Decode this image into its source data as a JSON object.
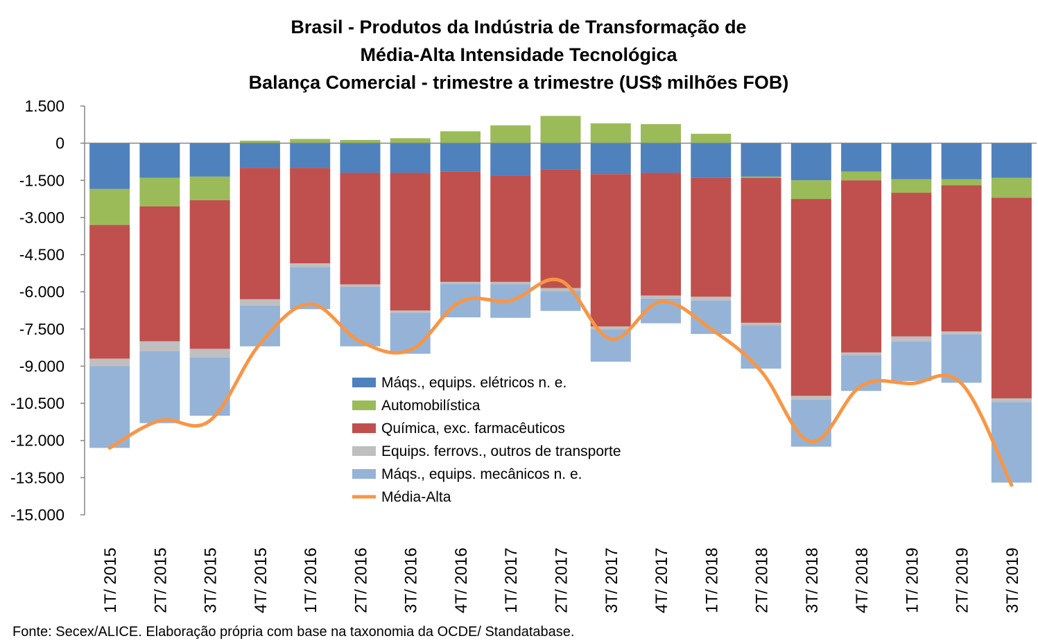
{
  "chart_data": {
    "type": "bar",
    "stacked": true,
    "title": [
      "Brasil - Produtos da Indústria de Transformação de",
      "Média-Alta Intensidade Tecnológica",
      "Balança Comercial - trimestre a trimestre (US$ milhões FOB)"
    ],
    "xlabel": "",
    "ylabel": "",
    "ylim": [
      -15000,
      1500
    ],
    "ytick_step": 1500,
    "yticks": [
      "1.500",
      "0",
      "-1.500",
      "-3.000",
      "-4.500",
      "-6.000",
      "-7.500",
      "-9.000",
      "-10.500",
      "-12.000",
      "-13.500",
      "-15.000"
    ],
    "grid": false,
    "legend_position": "inside-bottom-center",
    "categories": [
      "1T/ 2015",
      "2T/ 2015",
      "3T/ 2015",
      "4T/ 2015",
      "1T/ 2016",
      "2T/ 2016",
      "3T/ 2016",
      "4T/ 2016",
      "1T/ 2017",
      "2T/ 2017",
      "3T/ 2017",
      "4T/ 2017",
      "1T/ 2018",
      "2T/ 2018",
      "3T/ 2018",
      "4T/ 2018",
      "1T/ 2019",
      "2T/ 2019",
      "3T/ 2019"
    ],
    "series": [
      {
        "name": "Máqs., equips. elétricos n. e.",
        "kind": "bar",
        "color": "#4F81BD",
        "values": [
          -1850,
          -1400,
          -1350,
          -1000,
          -1000,
          -1200,
          -1200,
          -1150,
          -1300,
          -1050,
          -1250,
          -1200,
          -1400,
          -1350,
          -1500,
          -1150,
          -1450,
          -1450,
          -1400
        ]
      },
      {
        "name": "Automobilística",
        "kind": "bar",
        "color": "#9BBB59",
        "values": [
          -1450,
          -1150,
          -950,
          100,
          170,
          130,
          200,
          480,
          720,
          1100,
          800,
          770,
          380,
          -50,
          -750,
          -350,
          -550,
          -250,
          -800
        ]
      },
      {
        "name": "Química, exc. farmacêuticos",
        "kind": "bar",
        "color": "#C0504D",
        "values": [
          -5400,
          -5450,
          -6000,
          -5300,
          -3850,
          -4500,
          -5550,
          -4450,
          -4300,
          -4800,
          -6150,
          -4950,
          -4800,
          -5850,
          -7950,
          -6950,
          -5800,
          -5900,
          -8100
        ]
      },
      {
        "name": "Equips. ferrovs., outros de transporte",
        "kind": "bar",
        "color": "#BFBFBF",
        "values": [
          -300,
          -400,
          -350,
          -250,
          -150,
          -100,
          -100,
          -80,
          -100,
          -120,
          -120,
          -120,
          -150,
          -100,
          -150,
          -100,
          -200,
          -120,
          -150
        ]
      },
      {
        "name": "Máqs., equips. mecânicos  n. e.",
        "kind": "bar",
        "color": "#95B3D7",
        "values": [
          -3300,
          -2900,
          -2350,
          -1650,
          -1700,
          -2400,
          -1650,
          -1350,
          -1350,
          -800,
          -1300,
          -1000,
          -1350,
          -1750,
          -1900,
          -1450,
          -1600,
          -1950,
          -3250
        ]
      },
      {
        "name": "Média-Alta",
        "kind": "line",
        "color": "#F79646",
        "values": [
          -12300,
          -11200,
          -11200,
          -8100,
          -6500,
          -8000,
          -8350,
          -6400,
          -6350,
          -5550,
          -7900,
          -6400,
          -7500,
          -9200,
          -12050,
          -9800,
          -9700,
          -9700,
          -13800
        ]
      }
    ]
  },
  "source_note": "Fonte: Secex/ALICE. Elaboração própria com base na taxonomia da OCDE/ Standatabase."
}
